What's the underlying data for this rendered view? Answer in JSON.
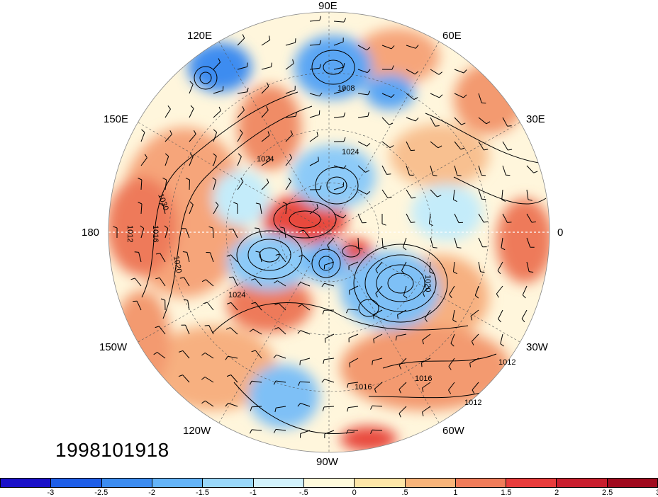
{
  "timestamp": "1998101918",
  "longitude_labels": {
    "lon_90e": "90E",
    "lon_60e": "60E",
    "lon_120e": "120E",
    "lon_30e": "30E",
    "lon_150e": "150E",
    "lon_0": "0",
    "lon_180": "180",
    "lon_30w": "30W",
    "lon_150w": "150W",
    "lon_60w": "60W",
    "lon_120w": "120W",
    "lon_90w": "90W"
  },
  "isobar_labels": [
    "1008",
    "1012",
    "1016",
    "1020",
    "1024",
    "1030"
  ],
  "colorbar": {
    "colors": [
      "#1a10c8",
      "#1e5ee8",
      "#3c8cf0",
      "#64b4f8",
      "#9ad8fa",
      "#d2f2fc",
      "#fffadc",
      "#fde6a8",
      "#f8b47a",
      "#f07c5a",
      "#e83c3c",
      "#c81e2e",
      "#a00a1e"
    ],
    "ticks": [
      "-3",
      "-2.5",
      "-2",
      "-1.5",
      "-1",
      "-.5",
      "0",
      ".5",
      "1",
      "1.5",
      "2",
      "2.5",
      "3"
    ]
  }
}
